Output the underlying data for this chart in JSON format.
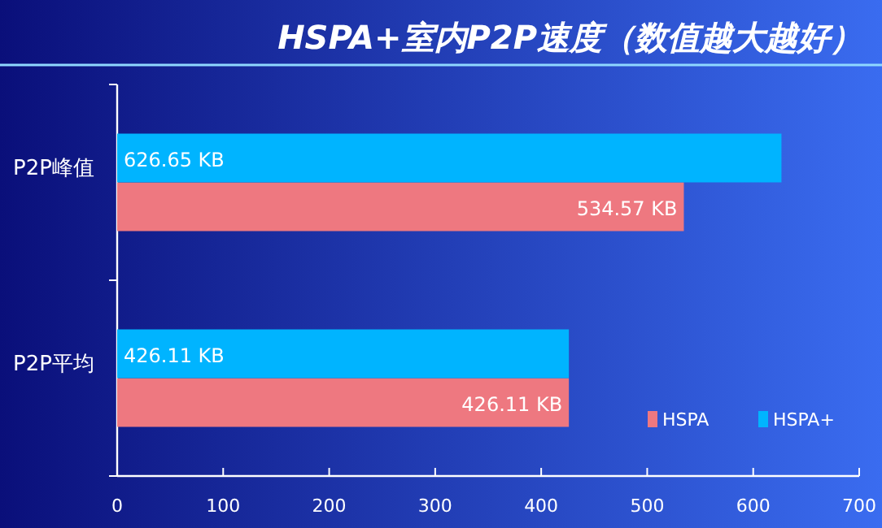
{
  "chart_data": {
    "type": "bar",
    "orientation": "horizontal",
    "title": "HSPA+室内P2P速度（数值越大越好）",
    "categories": [
      "P2P峰值",
      "P2P平均"
    ],
    "series": [
      {
        "name": "HSPA",
        "color": "#ee7880",
        "values": [
          534.57,
          426.11
        ],
        "value_labels": [
          "534.57 KB",
          "426.11 KB"
        ]
      },
      {
        "name": "HSPA+",
        "color": "#00b4ff",
        "values": [
          626.65,
          426.11
        ],
        "value_labels": [
          "626.65 KB",
          "426.11 KB"
        ]
      }
    ],
    "xlim": [
      0,
      700
    ],
    "xticks": [
      0,
      100,
      200,
      300,
      400,
      500,
      600,
      700
    ],
    "grid": false,
    "legend": "bottom right"
  }
}
